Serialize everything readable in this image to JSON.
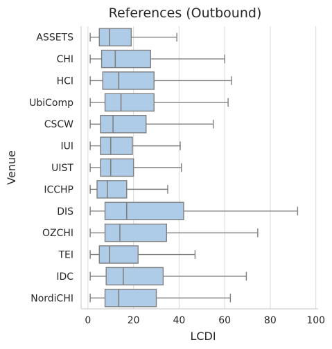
{
  "chart_data": {
    "type": "boxplot",
    "orientation": "horizontal",
    "title": "References (Outbound)",
    "xlabel": "LCDI",
    "ylabel": "Venue",
    "xlim": [
      -3,
      101
    ],
    "xticks": [
      0,
      20,
      40,
      60,
      80,
      100
    ],
    "grid": "vertical",
    "colors": {
      "box_fill": "#aecbe8",
      "line": "#7f7f7f",
      "grid": "#d9d9d9",
      "text": "#262626"
    },
    "categories": [
      "ASSETS",
      "CHI",
      "HCI",
      "UbiComp",
      "CSCW",
      "IUI",
      "UIST",
      "ICCHP",
      "DIS",
      "OZCHI",
      "TEI",
      "IDC",
      "NordiCHI"
    ],
    "series": [
      {
        "category": "ASSETS",
        "min": 1,
        "q1": 5,
        "median": 9.5,
        "q3": 19,
        "max": 39
      },
      {
        "category": "CHI",
        "min": 1,
        "q1": 6,
        "median": 12,
        "q3": 27.5,
        "max": 60
      },
      {
        "category": "HCI",
        "min": 1,
        "q1": 6.5,
        "median": 13.5,
        "q3": 29,
        "max": 63
      },
      {
        "category": "UbiComp",
        "min": 1,
        "q1": 7.5,
        "median": 14.5,
        "q3": 29,
        "max": 61.5
      },
      {
        "category": "CSCW",
        "min": 1,
        "q1": 5.5,
        "median": 11,
        "q3": 25.5,
        "max": 55
      },
      {
        "category": "IUI",
        "min": 1,
        "q1": 5.5,
        "median": 10,
        "q3": 19.5,
        "max": 40.5
      },
      {
        "category": "UIST",
        "min": 1,
        "q1": 5.5,
        "median": 10,
        "q3": 20,
        "max": 41
      },
      {
        "category": "ICCHP",
        "min": 1,
        "q1": 4,
        "median": 8.5,
        "q3": 17,
        "max": 35
      },
      {
        "category": "DIS",
        "min": 1,
        "q1": 7.5,
        "median": 17,
        "q3": 42,
        "max": 92
      },
      {
        "category": "OZCHI",
        "min": 1,
        "q1": 7.5,
        "median": 14,
        "q3": 34.5,
        "max": 74.5
      },
      {
        "category": "TEI",
        "min": 1,
        "q1": 5,
        "median": 9.5,
        "q3": 22,
        "max": 47
      },
      {
        "category": "IDC",
        "min": 1,
        "q1": 8,
        "median": 15.5,
        "q3": 33,
        "max": 69.5
      },
      {
        "category": "NordiCHI",
        "min": 1,
        "q1": 7.5,
        "median": 13.5,
        "q3": 30,
        "max": 62.5
      }
    ]
  }
}
